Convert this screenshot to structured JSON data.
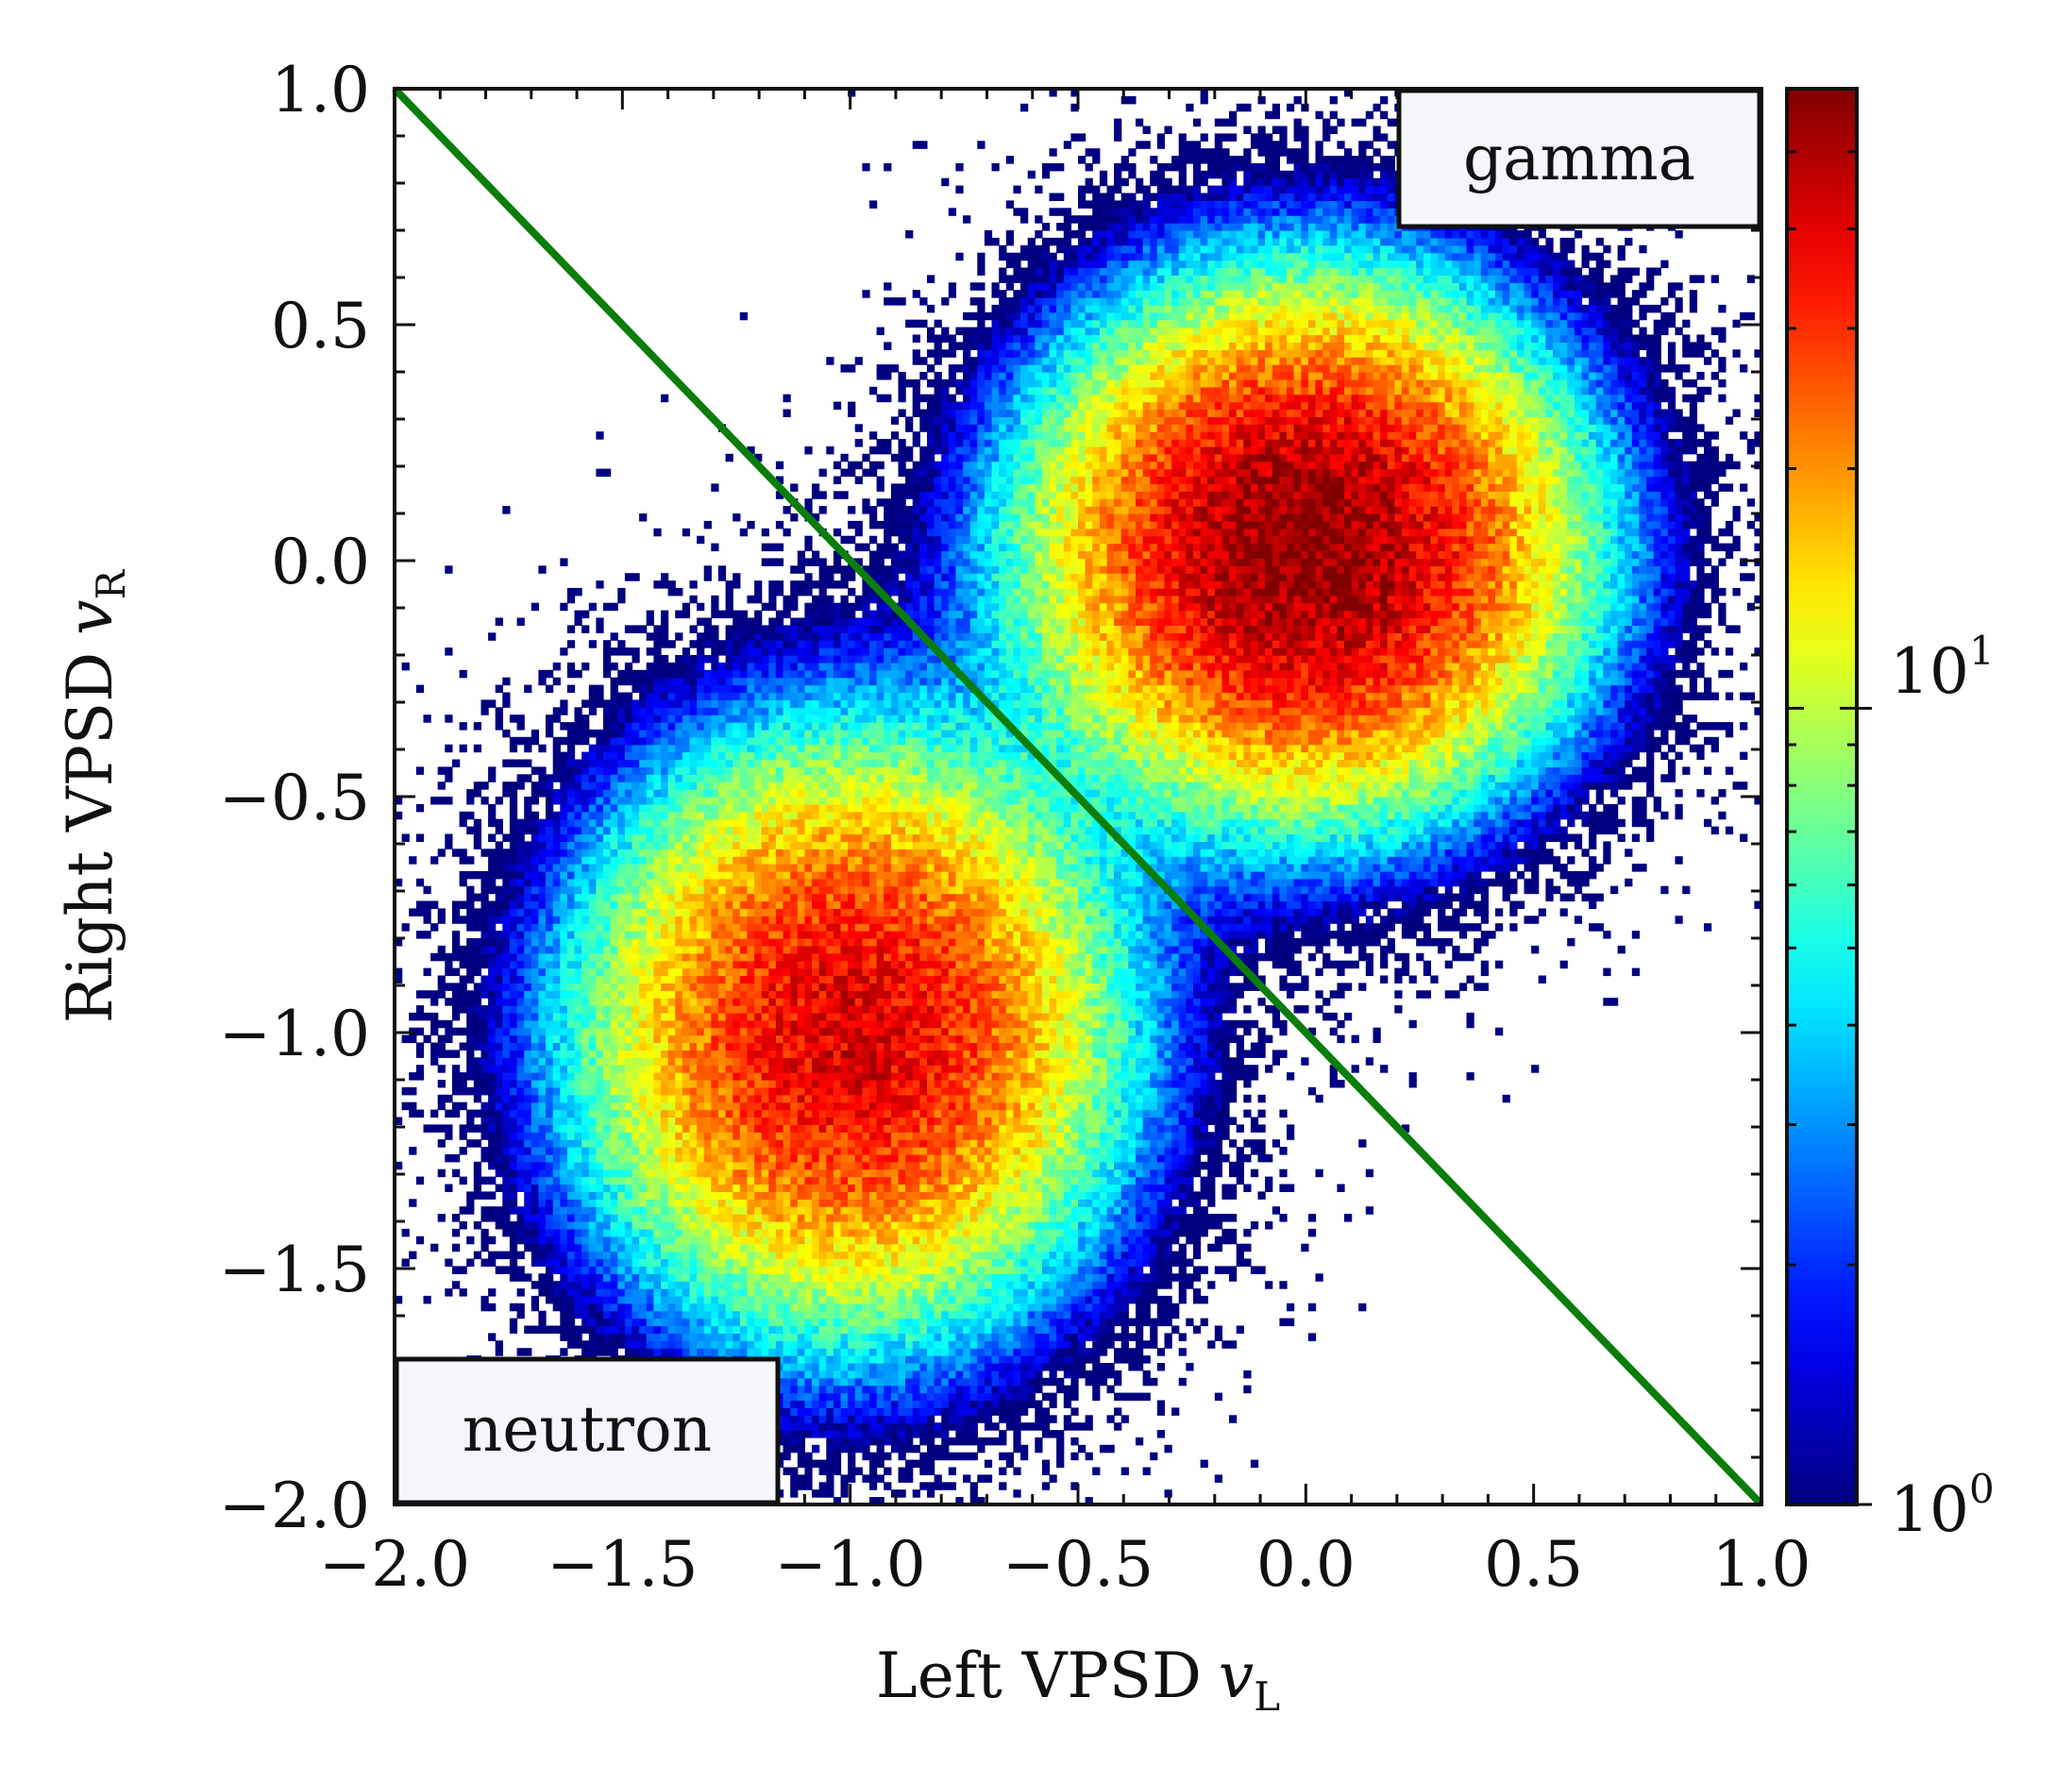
{
  "chart_data": {
    "type": "heatmap",
    "subtype": "2d-histogram",
    "title": "",
    "xlabel": "Left VPSD",
    "xlabel_var": "v",
    "xlabel_sub": "L",
    "ylabel": "Right VPSD",
    "ylabel_var": "v",
    "ylabel_sub": "R",
    "xlim": [
      -2.0,
      1.0
    ],
    "ylim": [
      -2.0,
      1.0
    ],
    "x_ticks": [
      -2.0,
      -1.5,
      -1.0,
      -0.5,
      0.0,
      0.5,
      1.0
    ],
    "y_ticks": [
      -2.0,
      -1.5,
      -1.0,
      -0.5,
      0.0,
      0.5,
      1.0
    ],
    "x_tick_labels": [
      "−2.0",
      "−1.5",
      "−1.0",
      "−0.5",
      "0.0",
      "0.5",
      "1.0"
    ],
    "y_tick_labels": [
      "−2.0",
      "−1.5",
      "−1.0",
      "−0.5",
      "0.0",
      "0.5",
      "1.0"
    ],
    "colormap": "jet",
    "color_scale": "log",
    "colorbar": {
      "range": [
        1,
        60
      ],
      "ticks": [
        1,
        10
      ],
      "tick_base": "10",
      "tick_exponents": [
        "0",
        "1"
      ]
    },
    "clusters": [
      {
        "name": "gamma",
        "center": [
          0.0,
          0.03
        ],
        "sigma": [
          0.3,
          0.28
        ],
        "peak_count": 60
      },
      {
        "name": "neutron",
        "center": [
          -1.0,
          -1.0
        ],
        "sigma": [
          0.3,
          0.32
        ],
        "peak_count": 42
      }
    ],
    "divider_line": {
      "color": "#0a7d0a",
      "points": [
        [
          -2.0,
          1.0
        ],
        [
          1.0,
          -2.0
        ]
      ]
    },
    "annotations": [
      {
        "text": "gamma",
        "location": "top-right"
      },
      {
        "text": "neutron",
        "location": "bottom-left"
      }
    ]
  }
}
